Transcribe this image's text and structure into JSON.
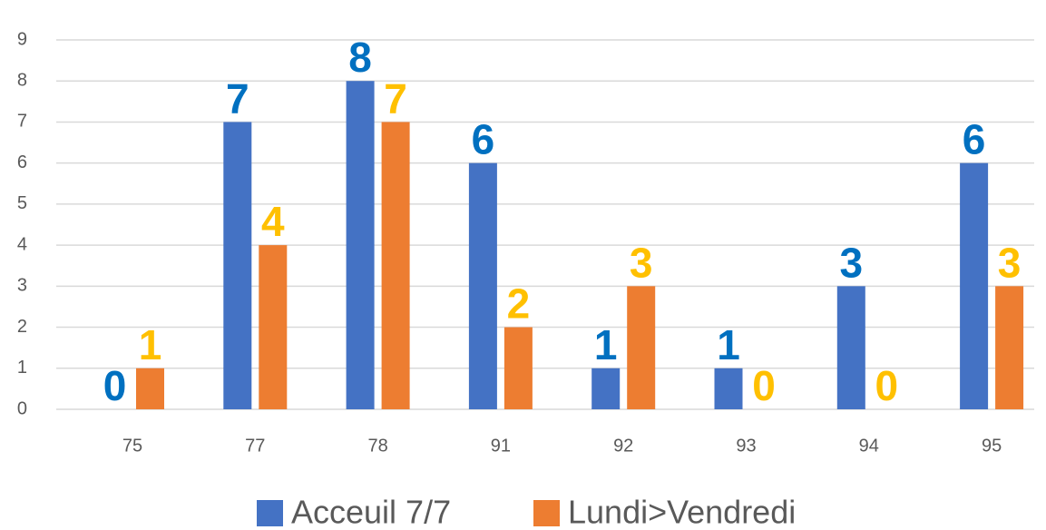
{
  "chart_data": {
    "type": "bar",
    "categories": [
      "75",
      "77",
      "78",
      "91",
      "92",
      "93",
      "94",
      "95"
    ],
    "series": [
      {
        "name": "Acceuil 7/7",
        "color": "#4472c4",
        "label_color": "#0070c0",
        "values": [
          0,
          7,
          8,
          6,
          1,
          1,
          3,
          6
        ]
      },
      {
        "name": "Lundi>Vendredi",
        "color": "#ed7d31",
        "label_color": "#ffc000",
        "values": [
          1,
          4,
          7,
          2,
          3,
          0,
          0,
          3
        ]
      }
    ],
    "ylim": [
      0,
      9
    ],
    "yticks": [
      0,
      1,
      2,
      3,
      4,
      5,
      6,
      7,
      8,
      9
    ],
    "grid": true,
    "legend": "bottom"
  }
}
